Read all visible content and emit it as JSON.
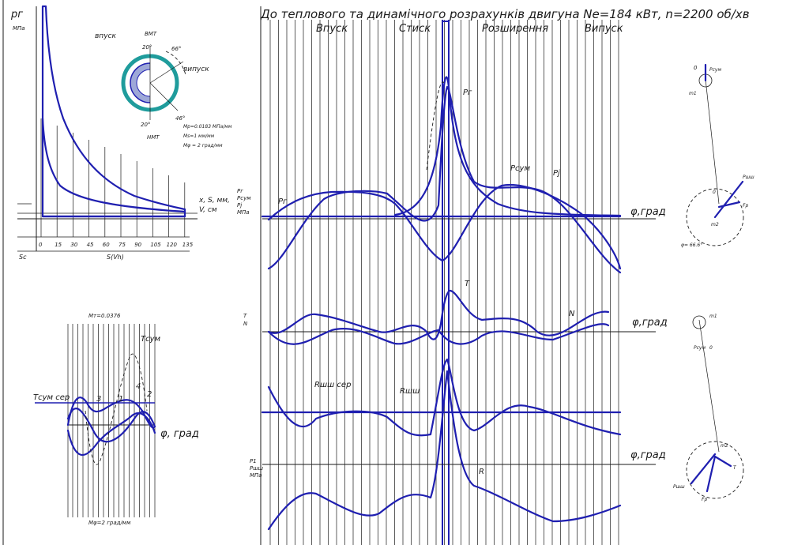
{
  "title": "До теплового та динамічного розрахунків двигуна Ne=184 кВт, n=2200 об/хв",
  "stroke_labels": [
    "Впуск",
    "Стиск",
    "Розширення",
    "Випуск"
  ],
  "indicator": {
    "y_label": "pг",
    "y_unit": "МПа",
    "x_label": "x, S, мм,",
    "x_label2": "V, см",
    "right_labels": [
      "Pг",
      "Pсум",
      "Pj",
      "МПа"
    ],
    "ticks": [
      "0",
      "15",
      "30",
      "45",
      "60",
      "75",
      "90",
      "105",
      "120",
      "135"
    ],
    "x_axis_label": "S(Vh)",
    "sc_label": "Sc",
    "scales": [
      "Mp=0.0183 МПа/мм",
      "Ms=1 мм/мм",
      "Mφ = 2 град/мм"
    ]
  },
  "valve_diagram": {
    "labels": [
      "впуск",
      "ВМТ",
      "випуск",
      "НМТ"
    ],
    "angles": [
      "20°",
      "66°",
      "20°",
      "46°"
    ]
  },
  "torque": {
    "scale_top": "Mт=0.0376",
    "scale_bottom": "Mφ=2 град/мм",
    "tsum_label": "Tсум",
    "tsum_avg_label": "Tсум сер",
    "cyl_labels": [
      "1",
      "2",
      "3",
      "4"
    ],
    "x_label": "φ, град"
  },
  "main": {
    "pg_label": "Pг",
    "psum_label": "Pсум",
    "pj_label": "Pj",
    "pr_label": "Pг",
    "phi_label": "φ,град",
    "tn_left": [
      "T",
      "N"
    ],
    "t_label": "T",
    "n_label": "N",
    "rsh_avg_label": "Rшш сер",
    "rsh_label": "Rшш",
    "rshn_left": [
      "P1",
      "Pшш",
      "МПа"
    ],
    "r_label": "R"
  },
  "crank1": {
    "labels": [
      "0",
      "Pсум",
      "m1",
      "Pшш",
      "0",
      "Fр",
      "m2",
      "φ= 66.6°"
    ]
  },
  "crank2": {
    "labels": [
      "m1",
      "Pсум",
      "0",
      "m2",
      "Pшш",
      "Fр",
      "T"
    ]
  }
}
